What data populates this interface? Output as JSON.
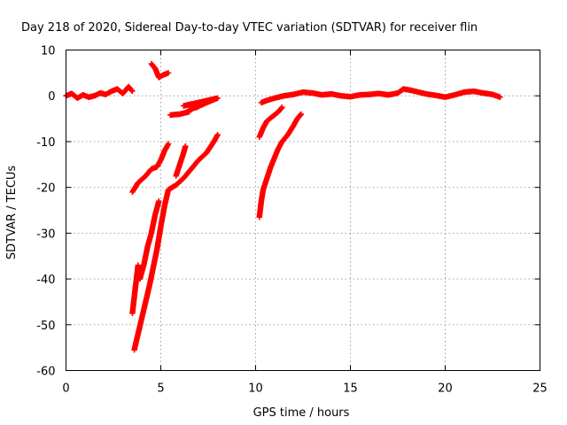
{
  "chart_data": {
    "type": "scatter",
    "title": "Day 218 of 2020, Sidereal Day-to-day VTEC variation (SDTVAR) for receiver flin",
    "xlabel": "GPS time / hours",
    "ylabel": "SDTVAR / TECUs",
    "xlim": [
      0,
      25
    ],
    "ylim": [
      -60,
      10
    ],
    "xticks": [
      "0",
      "5",
      "10",
      "15",
      "20",
      "25"
    ],
    "yticks": [
      "10",
      "0",
      "-10",
      "-20",
      "-30",
      "-40",
      "-50",
      "-60"
    ],
    "grid": true,
    "marker": "plus",
    "color": "#ff0000",
    "series": [
      {
        "points": [
          [
            0.0,
            0.0
          ],
          [
            0.3,
            0.5
          ],
          [
            0.6,
            -0.5
          ],
          [
            0.9,
            0.2
          ],
          [
            1.2,
            -0.3
          ],
          [
            1.5,
            0.0
          ],
          [
            1.8,
            0.6
          ],
          [
            2.1,
            0.3
          ],
          [
            2.4,
            1.0
          ],
          [
            2.7,
            1.5
          ],
          [
            3.0,
            0.5
          ],
          [
            3.3,
            2.0
          ],
          [
            3.5,
            1.0
          ]
        ]
      },
      {
        "points": [
          [
            4.5,
            7.0
          ],
          [
            4.7,
            6.0
          ],
          [
            4.8,
            5.0
          ],
          [
            4.9,
            4.0
          ],
          [
            5.1,
            4.5
          ],
          [
            5.4,
            5.0
          ]
        ]
      },
      {
        "points": [
          [
            5.5,
            -4.2
          ],
          [
            6.0,
            -4.0
          ],
          [
            6.5,
            -3.5
          ],
          [
            6.5,
            -3.0
          ],
          [
            6.9,
            -2.5
          ],
          [
            7.3,
            -1.7
          ],
          [
            7.7,
            -1.0
          ],
          [
            8.0,
            -0.5
          ],
          [
            6.2,
            -2.2
          ],
          [
            6.6,
            -1.8
          ]
        ]
      },
      {
        "points": [
          [
            3.5,
            -21.0
          ],
          [
            3.8,
            -19.0
          ],
          [
            4.2,
            -17.5
          ],
          [
            4.5,
            -16.0
          ],
          [
            4.8,
            -15.5
          ],
          [
            5.0,
            -14.0
          ],
          [
            5.2,
            -12.0
          ],
          [
            5.4,
            -10.5
          ]
        ]
      },
      {
        "points": [
          [
            5.8,
            -17.5
          ],
          [
            6.0,
            -15.0
          ],
          [
            6.2,
            -12.5
          ],
          [
            6.3,
            -11.0
          ]
        ]
      },
      {
        "points": [
          [
            3.6,
            -55.5
          ],
          [
            3.8,
            -52.0
          ],
          [
            4.0,
            -48.5
          ],
          [
            4.2,
            -45.0
          ],
          [
            4.4,
            -41.5
          ],
          [
            4.6,
            -37.5
          ],
          [
            4.8,
            -33.5
          ],
          [
            5.0,
            -28.5
          ],
          [
            5.2,
            -24.0
          ],
          [
            5.4,
            -20.5
          ],
          [
            5.8,
            -19.5
          ],
          [
            6.2,
            -18.0
          ],
          [
            6.6,
            -16.0
          ],
          [
            7.0,
            -14.0
          ],
          [
            7.4,
            -12.5
          ],
          [
            7.8,
            -10.0
          ],
          [
            8.0,
            -8.5
          ]
        ]
      },
      {
        "points": [
          [
            3.5,
            -47.5
          ],
          [
            3.6,
            -44.0
          ],
          [
            3.7,
            -40.5
          ],
          [
            3.8,
            -37.0
          ],
          [
            3.9,
            -40.0
          ],
          [
            4.1,
            -37.0
          ],
          [
            4.3,
            -33.0
          ],
          [
            4.5,
            -30.0
          ],
          [
            4.7,
            -26.0
          ],
          [
            4.9,
            -23.0
          ]
        ]
      },
      {
        "points": [
          [
            10.2,
            -9.0
          ],
          [
            10.4,
            -7.0
          ],
          [
            10.6,
            -5.5
          ],
          [
            10.9,
            -4.5
          ],
          [
            11.2,
            -3.5
          ],
          [
            11.4,
            -2.5
          ]
        ]
      },
      {
        "points": [
          [
            10.2,
            -26.5
          ],
          [
            10.3,
            -23.0
          ],
          [
            10.4,
            -20.5
          ],
          [
            10.6,
            -18.0
          ],
          [
            10.8,
            -15.5
          ],
          [
            11.0,
            -13.5
          ],
          [
            11.2,
            -11.5
          ],
          [
            11.4,
            -10.0
          ],
          [
            11.7,
            -8.5
          ],
          [
            12.0,
            -6.5
          ],
          [
            12.2,
            -5.0
          ],
          [
            12.4,
            -4.0
          ]
        ]
      },
      {
        "points": [
          [
            10.3,
            -1.5
          ],
          [
            10.6,
            -1.0
          ],
          [
            11.0,
            -0.5
          ],
          [
            11.5,
            0.0
          ],
          [
            12.0,
            0.3
          ],
          [
            12.5,
            0.8
          ],
          [
            13.0,
            0.6
          ],
          [
            13.5,
            0.2
          ],
          [
            14.0,
            0.4
          ],
          [
            14.5,
            0.0
          ],
          [
            15.0,
            -0.2
          ],
          [
            15.5,
            0.2
          ],
          [
            16.0,
            0.3
          ],
          [
            16.5,
            0.5
          ],
          [
            17.0,
            0.2
          ],
          [
            17.5,
            0.6
          ],
          [
            17.8,
            1.5
          ],
          [
            18.2,
            1.2
          ],
          [
            18.6,
            0.8
          ],
          [
            19.0,
            0.4
          ],
          [
            19.5,
            0.1
          ],
          [
            20.0,
            -0.3
          ],
          [
            20.5,
            0.2
          ],
          [
            21.0,
            0.8
          ],
          [
            21.5,
            1.0
          ],
          [
            22.0,
            0.6
          ],
          [
            22.5,
            0.3
          ],
          [
            22.9,
            -0.3
          ]
        ]
      }
    ]
  }
}
